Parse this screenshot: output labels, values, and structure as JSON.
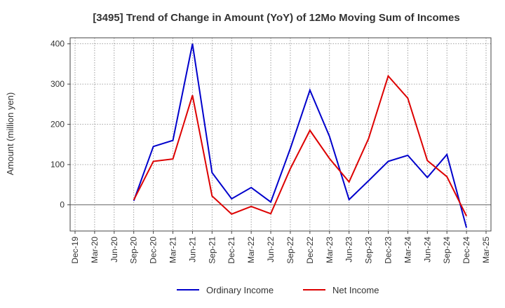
{
  "chart_data": {
    "type": "line",
    "title": "[3495]  Trend of Change in Amount (YoY) of 12Mo Moving Sum of Incomes",
    "ylabel": "Amount (million yen)",
    "xlabel": "",
    "ylim": [
      -65,
      415
    ],
    "yticks": [
      0,
      100,
      200,
      300,
      400
    ],
    "grid": true,
    "legend_position": "bottom",
    "categories": [
      "Dec-19",
      "Mar-20",
      "Jun-20",
      "Sep-20",
      "Dec-20",
      "Mar-21",
      "Jun-21",
      "Sep-21",
      "Dec-21",
      "Mar-22",
      "Jun-22",
      "Sep-22",
      "Dec-22",
      "Mar-23",
      "Jun-23",
      "Sep-23",
      "Dec-23",
      "Mar-24",
      "Jun-24",
      "Sep-24",
      "Dec-24",
      "Mar-25"
    ],
    "series": [
      {
        "name": "Ordinary Income",
        "color": "#0000cc",
        "values": [
          null,
          null,
          null,
          10,
          145,
          160,
          400,
          80,
          15,
          43,
          7,
          140,
          285,
          170,
          13,
          60,
          108,
          123,
          68,
          125,
          -57,
          null
        ]
      },
      {
        "name": "Net Income",
        "color": "#dd0000",
        "values": [
          null,
          null,
          null,
          12,
          108,
          114,
          272,
          22,
          -23,
          -4,
          -22,
          90,
          185,
          115,
          57,
          165,
          320,
          265,
          110,
          70,
          -28,
          null
        ]
      }
    ]
  }
}
